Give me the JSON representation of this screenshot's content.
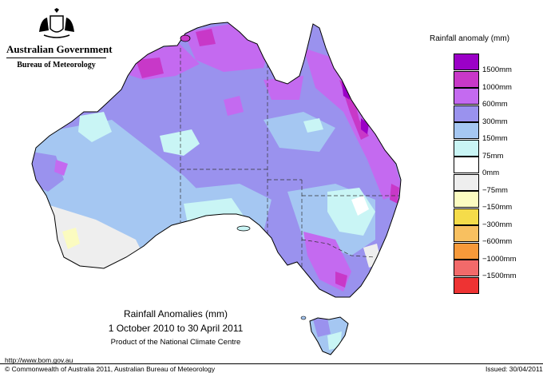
{
  "brand": {
    "government": "Australian Government",
    "bureau": "Bureau of Meteorology"
  },
  "legend": {
    "title": "Rainfall anomaly (mm)",
    "bins": [
      {
        "label": "1500mm",
        "color": "#9b00c7"
      },
      {
        "label": "1000mm",
        "color": "#c838c8"
      },
      {
        "label": "600mm",
        "color": "#c46af0"
      },
      {
        "label": "300mm",
        "color": "#9a92ee"
      },
      {
        "label": "150mm",
        "color": "#a5c7f2"
      },
      {
        "label": "75mm",
        "color": "#c9f5f5"
      },
      {
        "label": "0mm",
        "color": "#ffffff"
      },
      {
        "label": "−75mm",
        "color": "#eeeeee"
      },
      {
        "label": "−150mm",
        "color": "#fbfbc0"
      },
      {
        "label": "−300mm",
        "color": "#f5dc4a"
      },
      {
        "label": "−600mm",
        "color": "#f8c060"
      },
      {
        "label": "−1000mm",
        "color": "#f79a3a"
      },
      {
        "label": "−1500mm",
        "color": "#f26a6a"
      },
      {
        "label": "",
        "color": "#ee3333"
      }
    ]
  },
  "caption": {
    "title": "Rainfall Anomalies (mm)",
    "period": "1 October 2010 to 30 April 2011",
    "product": "Product of the National Climate Centre"
  },
  "footer": {
    "url": "http://www.bom.gov.au",
    "copyright": "© Commonwealth of Australia 2011, Australian Bureau of Meteorology",
    "issued": "Issued: 30/04/2011"
  }
}
